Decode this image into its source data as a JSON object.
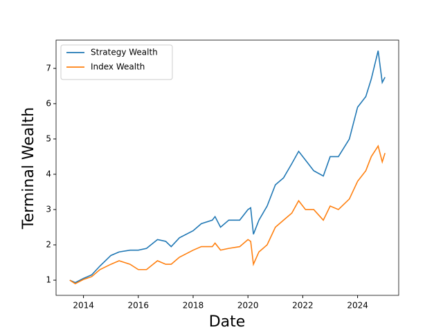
{
  "chart_data": {
    "type": "line",
    "xlabel": "Date",
    "ylabel": "Terminal Wealth",
    "x": [
      2013.5,
      2013.7,
      2014.0,
      2014.3,
      2014.6,
      2015.0,
      2015.3,
      2015.7,
      2016.0,
      2016.3,
      2016.7,
      2017.0,
      2017.2,
      2017.5,
      2018.0,
      2018.3,
      2018.7,
      2018.8,
      2019.0,
      2019.3,
      2019.7,
      2020.0,
      2020.1,
      2020.2,
      2020.4,
      2020.7,
      2021.0,
      2021.3,
      2021.6,
      2021.85,
      2022.1,
      2022.4,
      2022.75,
      2023.0,
      2023.3,
      2023.7,
      2024.0,
      2024.3,
      2024.5,
      2024.75,
      2024.9,
      2025.0
    ],
    "series": [
      {
        "name": "Strategy Wealth",
        "color": "#1f77b4",
        "values": [
          1.0,
          0.93,
          1.05,
          1.15,
          1.4,
          1.7,
          1.8,
          1.85,
          1.85,
          1.9,
          2.15,
          2.1,
          1.95,
          2.2,
          2.4,
          2.6,
          2.7,
          2.8,
          2.5,
          2.7,
          2.7,
          3.0,
          3.05,
          2.3,
          2.7,
          3.1,
          3.7,
          3.9,
          4.3,
          4.65,
          4.4,
          4.1,
          3.95,
          4.5,
          4.5,
          5.0,
          5.9,
          6.2,
          6.7,
          7.5,
          6.6,
          6.75
        ]
      },
      {
        "name": "Index Wealth",
        "color": "#ff7f0e",
        "values": [
          1.0,
          0.9,
          1.02,
          1.1,
          1.3,
          1.45,
          1.55,
          1.45,
          1.3,
          1.3,
          1.55,
          1.45,
          1.45,
          1.65,
          1.85,
          1.95,
          1.95,
          2.05,
          1.85,
          1.9,
          1.95,
          2.15,
          2.1,
          1.45,
          1.8,
          2.0,
          2.5,
          2.7,
          2.9,
          3.25,
          3.0,
          3.0,
          2.7,
          3.1,
          3.0,
          3.3,
          3.8,
          4.1,
          4.5,
          4.8,
          4.35,
          4.6
        ]
      }
    ],
    "xlim": [
      2013.0,
      2025.5
    ],
    "xticks": [
      2014,
      2016,
      2018,
      2020,
      2022,
      2024
    ],
    "ylim": [
      0.57,
      7.8
    ],
    "yticks": [
      1,
      2,
      3,
      4,
      5,
      6,
      7
    ],
    "legend": "upper left",
    "grid": false
  }
}
